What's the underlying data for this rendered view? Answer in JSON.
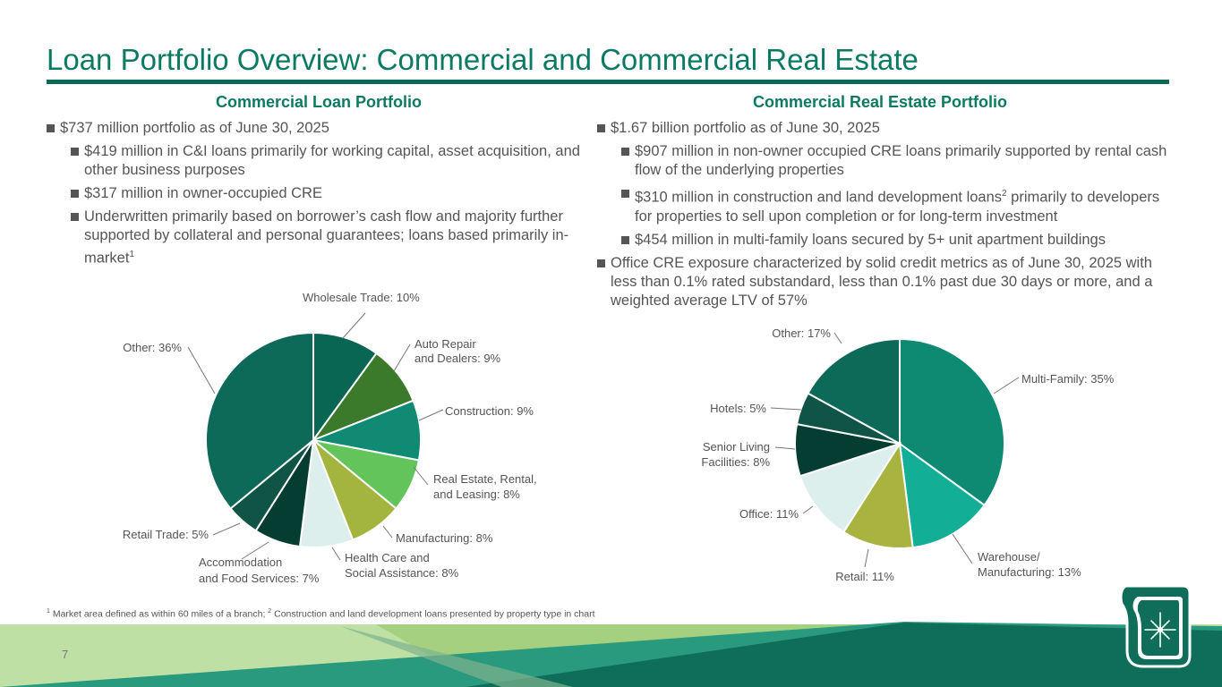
{
  "title": "Loan Portfolio Overview: Commercial and Commercial Real Estate",
  "colors": {
    "brand": "#0b7a62",
    "rule": "#0b6a57",
    "text": "#555555"
  },
  "left": {
    "heading": "Commercial Loan Portfolio",
    "bullets": [
      {
        "level": 1,
        "text": "$737 million portfolio as of June 30, 2025",
        "sup": ""
      },
      {
        "level": 2,
        "text": "$419 million in C&I loans primarily for working capital, asset acquisition, and other business purposes",
        "sup": ""
      },
      {
        "level": 2,
        "text": "$317 million in owner-occupied CRE",
        "sup": ""
      },
      {
        "level": 2,
        "text": "Underwritten primarily based on borrower’s cash flow and majority further supported by collateral and personal guarantees; loans based primarily in-market",
        "sup": "1"
      }
    ]
  },
  "right": {
    "heading": "Commercial Real Estate Portfolio",
    "bullets": [
      {
        "level": 1,
        "text": "$1.67 billion portfolio as of June 30, 2025",
        "sup": ""
      },
      {
        "level": 2,
        "text": "$907 million in non-owner occupied CRE loans primarily supported by rental cash flow of the underlying properties",
        "sup": ""
      },
      {
        "level": 2,
        "text": "$310 million in construction and land development loans",
        "sup": "2",
        "after": " primarily to developers for properties to sell upon completion or for long-term investment"
      },
      {
        "level": 2,
        "text": "$454 million in multi-family loans secured by 5+ unit apartment buildings",
        "sup": ""
      },
      {
        "level": 1,
        "text": "Office CRE exposure characterized by solid credit metrics as of June 30, 2025 with less than 0.1% rated substandard, less than 0.1% past due 30 days or more, and a weighted average LTV of 57%",
        "sup": ""
      }
    ]
  },
  "chart_data": [
    {
      "type": "pie",
      "title": "Commercial Loan Portfolio",
      "slices": [
        {
          "label": "Wholesale Trade: 10%",
          "value": 10,
          "color": "#086653"
        },
        {
          "label": "Auto Repair and Dealers: 9%",
          "value": 9,
          "color": "#3a7a2a"
        },
        {
          "label": "Construction: 9%",
          "value": 9,
          "color": "#108a72"
        },
        {
          "label": "Real Estate, Rental, and Leasing: 8%",
          "value": 8,
          "color": "#62c45a"
        },
        {
          "label": "Manufacturing: 8%",
          "value": 8,
          "color": "#a3b53e"
        },
        {
          "label": "Health Care and Social Assistance: 8%",
          "value": 8,
          "color": "#dcefed"
        },
        {
          "label": "Accommodation and Food Services: 7%",
          "value": 7,
          "color": "#053d33"
        },
        {
          "label": "Retail Trade: 5%",
          "value": 5,
          "color": "#0f5446"
        },
        {
          "label": "Other: 36%",
          "value": 36,
          "color": "#0e6a58"
        }
      ]
    },
    {
      "type": "pie",
      "title": "Commercial Real Estate Portfolio",
      "slices": [
        {
          "label": "Multi-Family: 35%",
          "value": 35,
          "color": "#0f8a72"
        },
        {
          "label": "Warehouse/ Manufacturing: 13%",
          "value": 13,
          "color": "#13ae96"
        },
        {
          "label": "Retail: 11%",
          "value": 11,
          "color": "#a8b43f"
        },
        {
          "label": "Office: 11%",
          "value": 11,
          "color": "#dcefed"
        },
        {
          "label": "Senior Living Facilities: 8%",
          "value": 8,
          "color": "#053d33"
        },
        {
          "label": "Hotels: 5%",
          "value": 5,
          "color": "#0f5446"
        },
        {
          "label": "Other: 17%",
          "value": 17,
          "color": "#0e6a58"
        }
      ]
    }
  ],
  "footnote": {
    "note1_marker": "1",
    "note1_text": " Market area defined as within 60 miles of a branch; ",
    "note2_marker": "2",
    "note2_text": " Construction and land development loans presented by property type in chart"
  },
  "page_number": "7"
}
